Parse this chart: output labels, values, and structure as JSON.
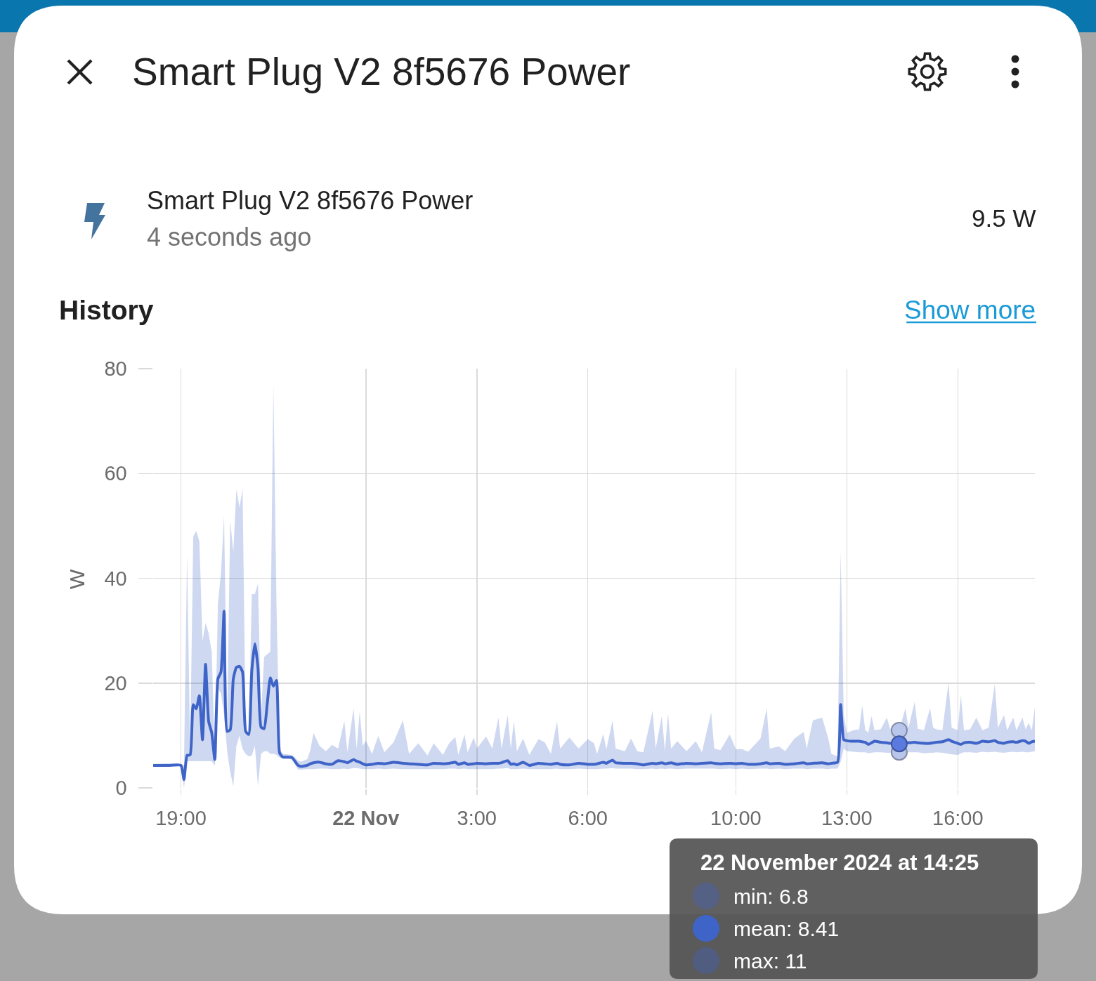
{
  "chart_data": {
    "type": "line",
    "title": "Smart Plug V2 8f5676 Power",
    "ylabel": "W",
    "annotations": [
      "Smart Plug V2 8f5676 Power",
      "4 seconds ago",
      "9.5 W",
      "History",
      "Show more",
      "22 November 2024 at 14:25",
      "min: 6.8",
      "mean: 8.41",
      "max: 11"
    ],
    "xlim": [
      "2024-11-21T18:15",
      "2024-11-22T18:05"
    ],
    "xticks": [
      {
        "value": "2024-11-21T19:00",
        "label": "19:00"
      },
      {
        "value": "2024-11-22T00:00",
        "label": "22 Nov"
      },
      {
        "value": "2024-11-22T03:00",
        "label": "3:00"
      },
      {
        "value": "2024-11-22T06:00",
        "label": "6:00"
      },
      {
        "value": "2024-11-22T10:00",
        "label": "10:00"
      },
      {
        "value": "2024-11-22T13:00",
        "label": "13:00"
      },
      {
        "value": "2024-11-22T16:00",
        "label": "16:00"
      }
    ],
    "ylim": [
      0,
      80
    ],
    "yticks": [
      0,
      20,
      40,
      60,
      80
    ],
    "grid": true,
    "x": [
      "2024-11-21T18:15",
      "2024-11-21T18:40",
      "2024-11-21T19:00",
      "2024-11-21T19:05",
      "2024-11-21T19:10",
      "2024-11-21T19:15",
      "2024-11-21T19:20",
      "2024-11-21T19:25",
      "2024-11-21T19:30",
      "2024-11-21T19:35",
      "2024-11-21T19:40",
      "2024-11-21T19:45",
      "2024-11-21T19:50",
      "2024-11-21T19:55",
      "2024-11-21T20:00",
      "2024-11-21T20:05",
      "2024-11-21T20:10",
      "2024-11-21T20:15",
      "2024-11-21T20:20",
      "2024-11-21T20:25",
      "2024-11-21T20:30",
      "2024-11-21T20:35",
      "2024-11-21T20:40",
      "2024-11-21T20:45",
      "2024-11-21T20:50",
      "2024-11-21T20:55",
      "2024-11-21T21:00",
      "2024-11-21T21:05",
      "2024-11-21T21:10",
      "2024-11-21T21:15",
      "2024-11-21T21:20",
      "2024-11-21T21:25",
      "2024-11-21T21:30",
      "2024-11-21T21:35",
      "2024-11-21T21:40",
      "2024-11-21T21:45",
      "2024-11-21T22:00",
      "2024-11-21T22:10",
      "2024-11-21T22:15",
      "2024-11-21T22:25",
      "2024-11-21T22:30",
      "2024-11-21T22:35",
      "2024-11-21T22:45",
      "2024-11-21T22:55",
      "2024-11-21T23:05",
      "2024-11-21T23:15",
      "2024-11-21T23:25",
      "2024-11-21T23:30",
      "2024-11-21T23:40",
      "2024-11-21T23:45",
      "2024-11-21T23:50",
      "2024-11-21T23:55",
      "2024-11-22T00:00",
      "2024-11-22T00:10",
      "2024-11-22T00:20",
      "2024-11-22T00:30",
      "2024-11-22T00:45",
      "2024-11-22T01:00",
      "2024-11-22T01:10",
      "2024-11-22T01:25",
      "2024-11-22T01:40",
      "2024-11-22T01:50",
      "2024-11-22T02:05",
      "2024-11-22T02:15",
      "2024-11-22T02:25",
      "2024-11-22T02:30",
      "2024-11-22T02:40",
      "2024-11-22T02:45",
      "2024-11-22T02:55",
      "2024-11-22T03:00",
      "2024-11-22T03:15",
      "2024-11-22T03:25",
      "2024-11-22T03:35",
      "2024-11-22T03:40",
      "2024-11-22T03:50",
      "2024-11-22T03:55",
      "2024-11-22T04:00",
      "2024-11-22T04:05",
      "2024-11-22T04:15",
      "2024-11-22T04:25",
      "2024-11-22T04:40",
      "2024-11-22T04:50",
      "2024-11-22T05:00",
      "2024-11-22T05:10",
      "2024-11-22T05:15",
      "2024-11-22T05:30",
      "2024-11-22T05:45",
      "2024-11-22T06:00",
      "2024-11-22T06:10",
      "2024-11-22T06:15",
      "2024-11-22T06:25",
      "2024-11-22T06:30",
      "2024-11-22T06:40",
      "2024-11-22T06:45",
      "2024-11-22T07:00",
      "2024-11-22T07:10",
      "2024-11-22T07:20",
      "2024-11-22T07:30",
      "2024-11-22T07:45",
      "2024-11-22T07:50",
      "2024-11-22T08:00",
      "2024-11-22T08:05",
      "2024-11-22T08:10",
      "2024-11-22T08:15",
      "2024-11-22T08:25",
      "2024-11-22T08:40",
      "2024-11-22T08:55",
      "2024-11-22T09:05",
      "2024-11-22T09:20",
      "2024-11-22T09:25",
      "2024-11-22T09:35",
      "2024-11-22T09:50",
      "2024-11-22T10:00",
      "2024-11-22T10:10",
      "2024-11-22T10:20",
      "2024-11-22T10:40",
      "2024-11-22T10:50",
      "2024-11-22T10:55",
      "2024-11-22T11:10",
      "2024-11-22T11:20",
      "2024-11-22T11:35",
      "2024-11-22T11:50",
      "2024-11-22T11:55",
      "2024-11-22T12:05",
      "2024-11-22T12:20",
      "2024-11-22T12:30",
      "2024-11-22T12:35",
      "2024-11-22T12:45",
      "2024-11-22T12:50",
      "2024-11-22T12:55",
      "2024-11-22T13:00",
      "2024-11-22T13:10",
      "2024-11-22T13:20",
      "2024-11-22T13:25",
      "2024-11-22T13:30",
      "2024-11-22T13:35",
      "2024-11-22T13:40",
      "2024-11-22T13:45",
      "2024-11-22T13:55",
      "2024-11-22T14:05",
      "2024-11-22T14:10",
      "2024-11-22T14:15",
      "2024-11-22T14:25",
      "2024-11-22T14:35",
      "2024-11-22T14:40",
      "2024-11-22T14:50",
      "2024-11-22T14:55",
      "2024-11-22T15:05",
      "2024-11-22T15:15",
      "2024-11-22T15:20",
      "2024-11-22T15:25",
      "2024-11-22T15:35",
      "2024-11-22T15:45",
      "2024-11-22T15:50",
      "2024-11-22T16:00",
      "2024-11-22T16:05",
      "2024-11-22T16:10",
      "2024-11-22T16:20",
      "2024-11-22T16:30",
      "2024-11-22T16:40",
      "2024-11-22T16:50",
      "2024-11-22T17:00",
      "2024-11-22T17:05",
      "2024-11-22T17:15",
      "2024-11-22T17:20",
      "2024-11-22T17:30",
      "2024-11-22T17:35",
      "2024-11-22T17:45",
      "2024-11-22T17:50",
      "2024-11-22T17:55",
      "2024-11-22T18:00",
      "2024-11-22T18:05"
    ],
    "series": [
      {
        "color": "#3f64c8",
        "values": [
          4.3,
          4.3,
          4.3,
          1.6,
          6.2,
          6.3,
          15.9,
          15.1,
          17.6,
          9.2,
          23.6,
          12.7,
          10.5,
          5.4,
          20.8,
          22.1,
          33.7,
          10.8,
          11.1,
          20.8,
          23,
          23.2,
          22.1,
          10.8,
          10.2,
          22.4,
          27.5,
          22.9,
          11.6,
          11.3,
          16,
          21,
          19.4,
          20.5,
          6.7,
          5.9,
          5.8,
          4.3,
          4.1,
          4.3,
          4.6,
          4.8,
          4.9,
          4.6,
          4.5,
          5.2,
          5.0,
          4.8,
          5.4,
          5.1,
          4.9,
          4.6,
          4.4,
          4.5,
          4.7,
          4.6,
          4.9,
          4.7,
          4.6,
          4.5,
          4.4,
          4.7,
          4.6,
          4.7,
          4.9,
          4.5,
          4.8,
          4.5,
          4.6,
          4.7,
          4.6,
          4.7,
          4.7,
          4.8,
          5.2,
          4.5,
          4.6,
          4.4,
          4.9,
          4.3,
          4.7,
          4.6,
          4.5,
          4.7,
          4.5,
          4.4,
          4.7,
          4.5,
          4.5,
          4.6,
          4.9,
          4.7,
          5.3,
          4.8,
          4.7,
          4.7,
          4.6,
          4.4,
          4.7,
          4.6,
          4.8,
          4.6,
          4.7,
          4.8,
          4.5,
          4.7,
          4.6,
          4.7,
          4.8,
          4.7,
          4.6,
          4.7,
          4.6,
          4.7,
          4.5,
          4.6,
          4.8,
          4.6,
          4.7,
          4.5,
          4.6,
          4.8,
          4.6,
          4.7,
          4.8,
          4.6,
          4.7,
          4.9,
          15.9,
          9.2,
          9.0,
          8.9,
          8.9,
          8.8,
          8.7,
          8.3,
          8.6,
          8.9,
          8.7,
          8.6,
          8.5,
          8.5,
          8.41,
          8.7,
          8.6,
          8.7,
          8.6,
          8.5,
          8.5,
          8.6,
          8.7,
          8.8,
          9.2,
          8.9,
          8.5,
          8.3,
          8.6,
          8.7,
          8.5,
          8.9,
          8.8,
          9.0,
          8.7,
          8.5,
          8.7,
          8.8,
          8.7,
          9.0,
          8.9,
          8.5,
          8.8,
          8.9
        ],
        "lower": [
          4.2,
          4.2,
          4.2,
          0,
          5.1,
          5.1,
          5.1,
          5.1,
          5.1,
          5.1,
          5.1,
          5.1,
          5.1,
          4.2,
          19,
          18,
          14,
          7,
          3,
          0.3,
          8,
          10,
          7.4,
          6.5,
          6,
          6.2,
          8,
          0.3,
          6.5,
          7,
          7,
          6.5,
          6.5,
          6.3,
          5.8,
          5.6,
          5.5,
          3.5,
          3.5,
          3.6,
          3.6,
          3.6,
          3.7,
          3.7,
          3.6,
          3.6,
          3.7,
          3.6,
          3.8,
          3.8,
          3.7,
          3.6,
          3.6,
          3.6,
          3.7,
          3.6,
          3.7,
          3.6,
          3.6,
          3.6,
          3.6,
          3.6,
          3.6,
          3.7,
          3.7,
          3.6,
          3.7,
          3.6,
          3.6,
          3.6,
          3.6,
          3.6,
          3.7,
          3.7,
          3.8,
          3.6,
          3.6,
          3.6,
          3.7,
          3.6,
          3.6,
          3.6,
          3.6,
          3.7,
          3.6,
          3.6,
          3.7,
          3.6,
          3.6,
          3.6,
          3.7,
          3.7,
          3.8,
          3.7,
          3.7,
          3.7,
          3.6,
          3.6,
          3.7,
          3.6,
          3.7,
          3.6,
          3.7,
          3.7,
          3.6,
          3.7,
          3.7,
          3.7,
          3.7,
          3.7,
          3.6,
          3.7,
          3.6,
          3.7,
          3.6,
          3.7,
          3.7,
          3.6,
          3.7,
          3.6,
          3.7,
          3.7,
          3.6,
          3.7,
          3.7,
          3.6,
          3.7,
          3.7,
          5.0,
          7.5,
          7.0,
          6.9,
          6.8,
          6.8,
          6.8,
          6.6,
          6.7,
          6.8,
          6.8,
          6.7,
          6.7,
          6.8,
          6.8,
          6.8,
          6.8,
          6.8,
          6.8,
          6.6,
          6.7,
          6.7,
          6.8,
          6.7,
          6.5,
          6.4,
          6.3,
          6.6,
          6.8,
          6.8,
          6.7,
          6.9,
          6.8,
          6.9,
          6.8,
          6.7,
          6.8,
          6.9,
          6.8,
          6.9,
          6.8,
          6.8,
          6.9,
          7.0
        ],
        "upper": [
          4.6,
          4.7,
          4.5,
          4.3,
          44.5,
          7,
          48,
          49,
          47,
          28,
          31.5,
          29.5,
          26,
          6.2,
          35,
          41,
          52,
          13,
          51,
          45,
          57,
          53.5,
          57,
          11,
          10.5,
          37,
          37,
          39,
          14,
          25,
          25.5,
          26,
          77,
          35,
          7.5,
          6.5,
          6.3,
          5.2,
          5.0,
          5.5,
          7.2,
          10.5,
          8.0,
          7.0,
          8.2,
          7.5,
          12.8,
          6.8,
          15.2,
          7.5,
          14.6,
          8.0,
          9.0,
          6.5,
          9.9,
          6.8,
          8.7,
          12.9,
          6.5,
          8.5,
          6.2,
          8.5,
          6.3,
          8.5,
          9.7,
          6.3,
          10.2,
          6.8,
          9.6,
          7.5,
          9.8,
          7.5,
          13.4,
          7.5,
          13.9,
          7.5,
          12.7,
          7.0,
          9.4,
          6.3,
          9.3,
          8.7,
          6.5,
          12.7,
          7.5,
          9.6,
          7.5,
          9.3,
          8.5,
          6.5,
          10.3,
          7.3,
          12.9,
          7.5,
          7.0,
          9.4,
          7.0,
          6.8,
          14.7,
          7.5,
          13.7,
          7.0,
          14.2,
          7.5,
          8.9,
          7.0,
          8.9,
          6.8,
          14.4,
          7.5,
          7.2,
          10.2,
          7.4,
          7.4,
          6.9,
          9.4,
          15.2,
          7.5,
          7.9,
          7.0,
          9.4,
          10.7,
          7.5,
          12.9,
          13.4,
          9.4,
          6.5,
          6.0,
          45.1,
          14,
          10.5,
          11.0,
          11.2,
          15.7,
          11.0,
          10.6,
          13.7,
          11.0,
          11.2,
          13.4,
          11.3,
          11.5,
          11,
          15.2,
          11.5,
          16.4,
          11.3,
          11.0,
          15.2,
          11.5,
          11.2,
          11.0,
          20.1,
          11.5,
          11.0,
          17.7,
          11.0,
          11.2,
          13.4,
          11.0,
          11.5,
          19.9,
          11.5,
          13.9,
          11.0,
          13.4,
          11.0,
          13.4,
          11.2,
          12.4,
          11.0,
          15.4
        ]
      },
      {
        "type": "scatter",
        "marker": "circle",
        "color": "#b9c6ec",
        "x": [
          "2024-11-22T14:25",
          "2024-11-22T14:25"
        ],
        "values": [
          6.8,
          11
        ]
      },
      {
        "type": "scatter",
        "marker": "circle",
        "color": "#5a7ae0",
        "x": [
          "2024-11-22T14:25"
        ],
        "values": [
          8.41
        ]
      }
    ]
  }
}
